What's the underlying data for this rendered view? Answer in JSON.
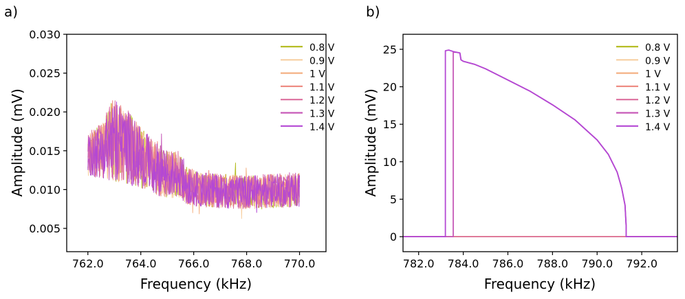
{
  "chart_data": [
    {
      "panel": "a)",
      "type": "line",
      "xlabel": "Frequency (kHz)",
      "ylabel": "Amplitude (mV)",
      "xlim": [
        761.2,
        771.0
      ],
      "ylim": [
        0.002,
        0.03
      ],
      "xticks": [
        762.0,
        764.0,
        766.0,
        768.0,
        770.0
      ],
      "xtick_labels": [
        "762.0",
        "764.0",
        "766.0",
        "768.0",
        "770.0"
      ],
      "yticks": [
        0.005,
        0.01,
        0.015,
        0.02,
        0.025,
        0.03
      ],
      "ytick_labels": [
        "0.005",
        "0.010",
        "0.015",
        "0.020",
        "0.025",
        "0.030"
      ],
      "legend_position": "top-right",
      "series": [
        {
          "name": "0.8 V",
          "color": "#b5bd24"
        },
        {
          "name": "0.9 V",
          "color": "#f7cfa0"
        },
        {
          "name": "1 V",
          "color": "#f4b183"
        },
        {
          "name": "1.1 V",
          "color": "#ee8c84"
        },
        {
          "name": "1.2 V",
          "color": "#dc6f9e"
        },
        {
          "name": "1.3 V",
          "color": "#c659b8"
        },
        {
          "name": "1.4 V",
          "color": "#b448d4"
        }
      ],
      "envelope": {
        "x": [
          762.0,
          762.5,
          763.0,
          763.5,
          764.0,
          764.5,
          765.0,
          765.5,
          765.8,
          766.2,
          767.0,
          768.0,
          769.0,
          770.0
        ],
        "mean": [
          0.0145,
          0.015,
          0.0165,
          0.0155,
          0.014,
          0.0128,
          0.012,
          0.0118,
          0.0105,
          0.01,
          0.0098,
          0.0097,
          0.0098,
          0.01
        ],
        "halfwidth": [
          0.0028,
          0.0035,
          0.0055,
          0.0048,
          0.004,
          0.0035,
          0.003,
          0.003,
          0.0025,
          0.0022,
          0.0022,
          0.0022,
          0.0022,
          0.0022
        ]
      }
    },
    {
      "panel": "b)",
      "type": "line",
      "xlabel": "Frequency (kHz)",
      "ylabel": "Amplitude (mV)",
      "xlim": [
        781.3,
        793.6
      ],
      "ylim": [
        -2.0,
        27.0
      ],
      "xticks": [
        782.0,
        784.0,
        786.0,
        788.0,
        790.0,
        792.0
      ],
      "xtick_labels": [
        "782.0",
        "784.0",
        "786.0",
        "788.0",
        "790.0",
        "792.0"
      ],
      "yticks": [
        0,
        5,
        10,
        15,
        20,
        25
      ],
      "ytick_labels": [
        "0",
        "5",
        "10",
        "15",
        "20",
        "25"
      ],
      "legend_position": "top-right",
      "series": [
        {
          "name": "0.8 V",
          "color": "#b5bd24"
        },
        {
          "name": "0.9 V",
          "color": "#f7cfa0"
        },
        {
          "name": "1 V",
          "color": "#f4b183"
        },
        {
          "name": "1.1 V",
          "color": "#ee8c84"
        },
        {
          "name": "1.2 V",
          "color": "#dc6f9e"
        },
        {
          "name": "1.3 V",
          "color": "#c659b8"
        },
        {
          "name": "1.4 V",
          "color": "#b448d4"
        }
      ],
      "baseline_series": [
        {
          "name": "0.8 V",
          "x": [
            781.3,
            793.6
          ],
          "y": [
            0,
            0
          ]
        },
        {
          "name": "0.9 V",
          "x": [
            781.3,
            793.6
          ],
          "y": [
            0,
            0
          ]
        },
        {
          "name": "1 V",
          "x": [
            781.3,
            793.6
          ],
          "y": [
            0,
            0
          ]
        },
        {
          "name": "1.1 V",
          "x": [
            781.3,
            793.6
          ],
          "y": [
            0,
            0
          ]
        },
        {
          "name": "1.2 V",
          "x": [
            781.3,
            793.6
          ],
          "y": [
            0,
            0
          ]
        }
      ],
      "curves": [
        {
          "name": "1.3 V",
          "x": [
            781.3,
            783.55,
            783.55,
            783.7,
            783.85,
            783.9,
            784.0,
            784.5,
            785.0,
            786.0,
            787.0,
            788.0,
            789.0,
            790.0,
            790.5,
            790.9,
            791.1,
            791.25,
            791.3,
            791.3,
            793.6
          ],
          "y": [
            0,
            0,
            24.6,
            24.6,
            24.5,
            23.6,
            23.4,
            23.0,
            22.4,
            20.9,
            19.4,
            17.6,
            15.6,
            12.9,
            11.0,
            8.6,
            6.5,
            4.2,
            1.5,
            0,
            0
          ]
        },
        {
          "name": "1.4 V",
          "x": [
            781.3,
            783.2,
            783.2,
            783.35,
            783.55,
            783.7,
            783.85,
            783.9,
            784.0,
            784.5,
            785.0,
            786.0,
            787.0,
            788.0,
            789.0,
            790.0,
            790.5,
            790.9,
            791.1,
            791.25,
            791.3,
            791.3,
            793.6
          ],
          "y": [
            0,
            0,
            24.8,
            24.9,
            24.7,
            24.6,
            24.5,
            23.6,
            23.4,
            23.0,
            22.4,
            20.9,
            19.4,
            17.6,
            15.6,
            12.9,
            11.0,
            8.6,
            6.5,
            4.2,
            1.5,
            0,
            0
          ]
        }
      ]
    }
  ]
}
